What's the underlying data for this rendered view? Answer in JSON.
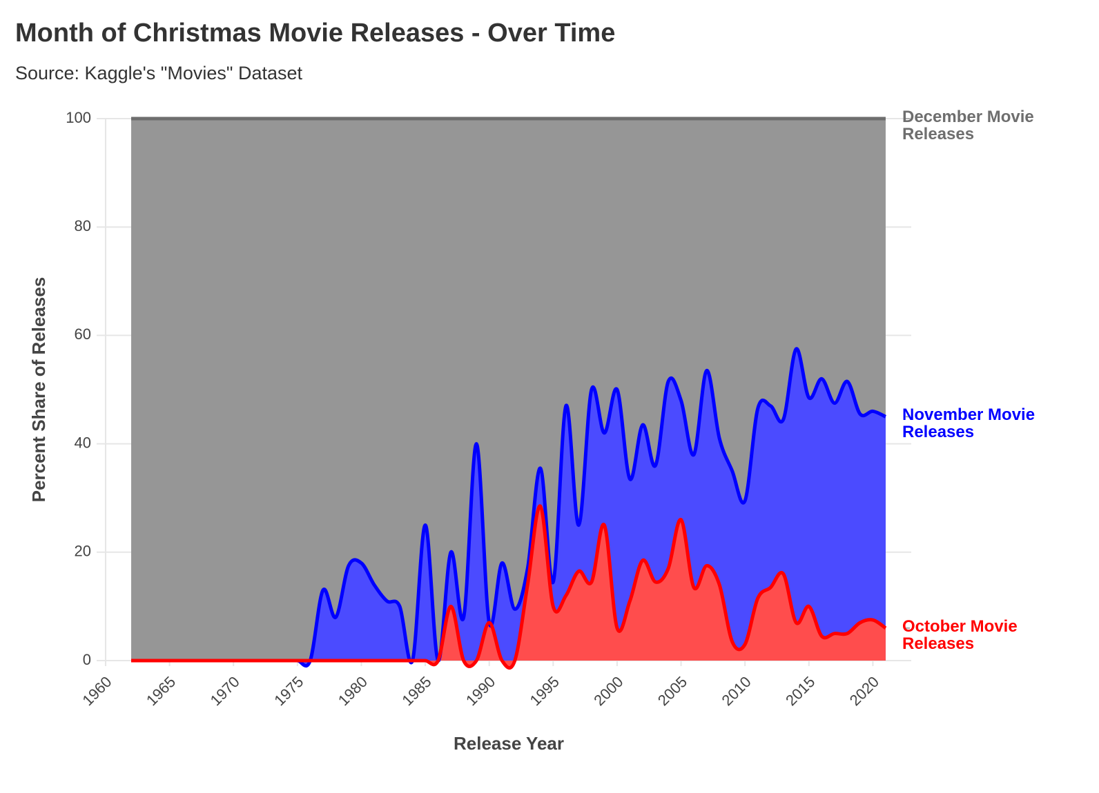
{
  "chart_data": {
    "type": "stacked_area",
    "title": "Month of Christmas Movie Releases - Over Time",
    "subtitle": "Source: Kaggle's \"Movies\" Dataset",
    "x_label": "Release Year",
    "y_label": "Percent Share of Releases",
    "x": [
      1962,
      1963,
      1964,
      1965,
      1966,
      1967,
      1968,
      1969,
      1970,
      1971,
      1972,
      1973,
      1974,
      1975,
      1976,
      1977,
      1978,
      1979,
      1980,
      1981,
      1982,
      1983,
      1984,
      1985,
      1986,
      1987,
      1988,
      1989,
      1990,
      1991,
      1992,
      1993,
      1994,
      1995,
      1996,
      1997,
      1998,
      1999,
      2000,
      2001,
      2002,
      2003,
      2004,
      2005,
      2006,
      2007,
      2008,
      2009,
      2010,
      2011,
      2012,
      2013,
      2014,
      2015,
      2016,
      2017,
      2018,
      2019,
      2020,
      2021
    ],
    "series": [
      {
        "name": "October Movie Releases",
        "color": "#ff0000",
        "fill": "#ff4d4d",
        "values": [
          0,
          0,
          0,
          0,
          0,
          0,
          0,
          0,
          0,
          0,
          0,
          0,
          0,
          0,
          0,
          0,
          0,
          0,
          0,
          0,
          0,
          0,
          0,
          0,
          0,
          10,
          0,
          0,
          7,
          0,
          0,
          14,
          28.5,
          10,
          12,
          16.5,
          14.5,
          25,
          6,
          11,
          18.5,
          14.5,
          17,
          26,
          13.5,
          17.5,
          14,
          3.5,
          3,
          11.5,
          13.5,
          16,
          7,
          10,
          4.5,
          5,
          5,
          7,
          7.5,
          6
        ]
      },
      {
        "name": "November Movie Releases",
        "color": "#0000ff",
        "fill": "#4b4bff",
        "values": [
          0,
          0,
          0,
          0,
          0,
          0,
          0,
          0,
          0,
          0,
          0,
          0,
          0,
          0,
          0,
          13,
          8,
          17.5,
          18,
          14,
          11,
          10,
          0,
          25,
          0,
          10,
          8,
          40,
          0,
          18,
          9.5,
          3,
          7,
          4.5,
          35,
          8.5,
          35.5,
          17,
          44,
          22.5,
          25,
          21.5,
          34.5,
          22,
          24.5,
          36,
          27,
          31.5,
          26.5,
          35,
          33.5,
          28.5,
          50.5,
          38.5,
          47.5,
          42.5,
          46.5,
          38.5,
          38.5,
          39
        ]
      },
      {
        "name": "December Movie Releases",
        "color": "#6e6e6e",
        "fill": "#969696",
        "values": [
          100,
          100,
          100,
          100,
          100,
          100,
          100,
          100,
          100,
          100,
          100,
          100,
          100,
          100,
          100,
          87,
          92,
          82.5,
          82,
          86,
          89,
          90,
          100,
          75,
          100,
          80,
          92,
          60,
          93,
          82,
          90.5,
          83,
          64.5,
          85.5,
          53,
          75,
          50,
          58,
          50,
          66.5,
          56.5,
          64,
          48.5,
          52,
          62,
          46.5,
          59,
          65,
          70.5,
          53.5,
          53,
          55.5,
          42.5,
          51.5,
          48,
          52.5,
          48.5,
          54.5,
          54,
          55
        ]
      }
    ],
    "xlim": [
      1959.3,
      2023
    ],
    "xticks": [
      1960,
      1965,
      1970,
      1975,
      1980,
      1985,
      1990,
      1995,
      2000,
      2005,
      2010,
      2015,
      2020
    ],
    "ylim": [
      0,
      100
    ],
    "yticks": [
      0,
      20,
      40,
      60,
      80,
      100
    ],
    "grid": true,
    "legend": "right"
  }
}
